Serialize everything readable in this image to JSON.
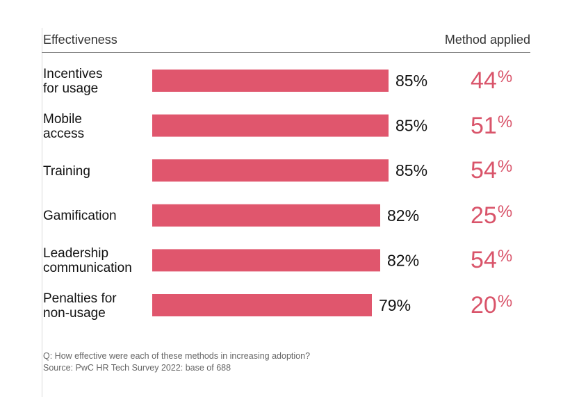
{
  "header": {
    "left": "Effectiveness",
    "right": "Method applied"
  },
  "chart_data": {
    "type": "bar",
    "orientation": "horizontal",
    "categories": [
      [
        "Incentives",
        "for usage"
      ],
      [
        "Mobile",
        "access"
      ],
      [
        "Training"
      ],
      [
        "Gamification"
      ],
      [
        "Leadership",
        "communication"
      ],
      [
        "Penalties for",
        "non-usage"
      ]
    ],
    "series": [
      {
        "values": [
          85,
          85,
          85,
          82,
          82,
          79
        ],
        "labels": [
          "85%",
          "85%",
          "85%",
          "82%",
          "82%",
          "79%"
        ]
      }
    ],
    "method_applied": [
      {
        "number": "44",
        "unit": "%"
      },
      {
        "number": "51",
        "unit": "%"
      },
      {
        "number": "54",
        "unit": "%"
      },
      {
        "number": "25",
        "unit": "%"
      },
      {
        "number": "54",
        "unit": "%"
      },
      {
        "number": "20",
        "unit": "%"
      }
    ],
    "xlim": [
      0,
      100
    ],
    "grid": false,
    "bar_color": "#e0566d",
    "accent_color": "#d9546a"
  },
  "footnote": {
    "question": "Q: How effective were each of these methods in increasing adoption?",
    "source": "Source: PwC HR Tech Survey 2022: base of 688"
  }
}
